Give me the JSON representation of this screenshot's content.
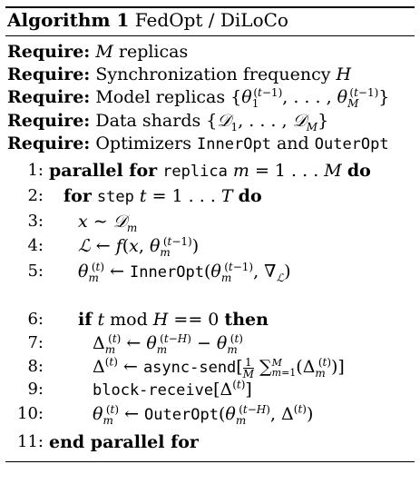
{
  "algorithm": {
    "label": "Algorithm 1",
    "name": "FedOpt / DiLoCo"
  },
  "requires": [
    {
      "keyword": "Require:",
      "text": "M replicas"
    },
    {
      "keyword": "Require:",
      "text": "Synchronization frequency H"
    },
    {
      "keyword": "Require:",
      "text": "Model replicas {θ1(t−1), …, θM(t−1)}"
    },
    {
      "keyword": "Require:",
      "text": "Data shards {𝒟1, …, 𝒟M}"
    },
    {
      "keyword": "Require:",
      "text": "Optimizers InnerOpt and OuterOpt"
    }
  ],
  "lines": [
    {
      "n": "1:",
      "text": "parallel for replica m = 1…M do"
    },
    {
      "n": "2:",
      "text": "for step t = 1…T do"
    },
    {
      "n": "3:",
      "text": "x ∼ 𝒟m"
    },
    {
      "n": "4:",
      "text": "ℒ ← f(x, θm(t−1))"
    },
    {
      "n": "5:",
      "text": "θm(t) ← InnerOpt(θm(t−1), ∇ℒ)"
    },
    {
      "n": "6:",
      "text": "if t mod H == 0 then"
    },
    {
      "n": "7:",
      "text": "Δm(t) ← θm(t−H) − θm(t)"
    },
    {
      "n": "8:",
      "text": "Δ(t) ← async-send[1/M Σm=1M (Δm(t))]"
    },
    {
      "n": "9:",
      "text": "block-receive[Δ(t)]"
    },
    {
      "n": "10:",
      "text": "θm(t) ← OuterOpt(θm(t−H), Δ(t))"
    },
    {
      "n": "11:",
      "text": "end parallel for"
    }
  ]
}
